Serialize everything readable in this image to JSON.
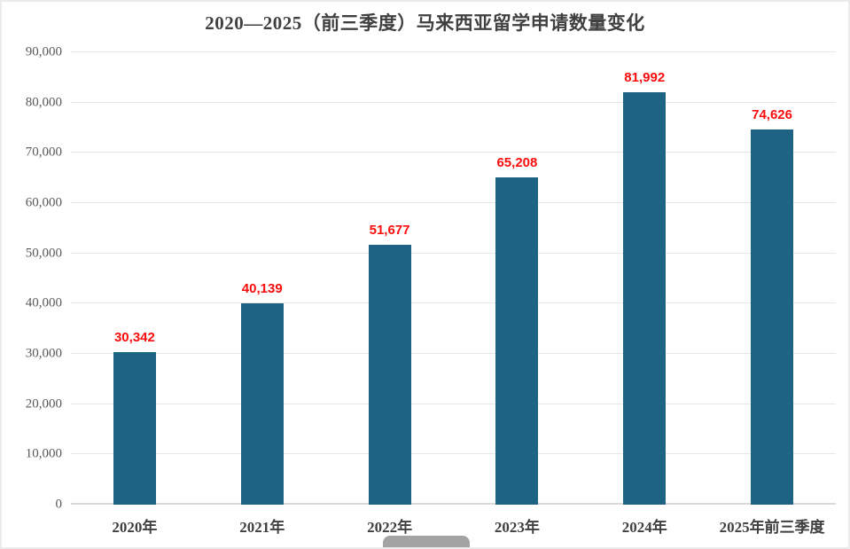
{
  "chart_data": {
    "type": "bar",
    "title": "2020—2025（前三季度）马来西亚留学申请数量变化",
    "categories": [
      "2020年",
      "2021年",
      "2022年",
      "2023年",
      "2024年",
      "2025年前三季度"
    ],
    "values": [
      30342,
      40139,
      51677,
      65208,
      81992,
      74626
    ],
    "value_labels": [
      "30,342",
      "40,139",
      "51,677",
      "65,208",
      "81,992",
      "74,626"
    ],
    "xlabel": "",
    "ylabel": "",
    "ylim": [
      0,
      90000
    ],
    "ytick_step": 10000,
    "ytick_labels": [
      "0",
      "10,000",
      "20,000",
      "30,000",
      "40,000",
      "50,000",
      "60,000",
      "70,000",
      "80,000",
      "90,000"
    ],
    "grid": true,
    "legend_position": "none",
    "colors": {
      "bar": "#1f6384",
      "value_label": "#fb0d0d",
      "title": "#404040",
      "y_tick_label": "#595959",
      "x_tick_label": "#3f3f3f",
      "gridline": "#e7e7e7",
      "axis_line": "#d9d9d9",
      "scrollbar": "#a3a3a3",
      "frame_border": "#ebebeb"
    }
  }
}
